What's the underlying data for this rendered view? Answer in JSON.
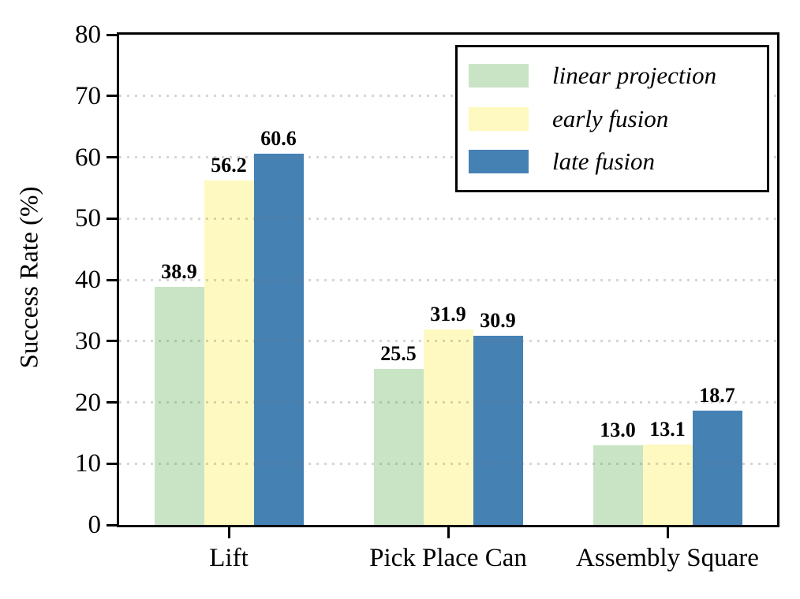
{
  "chart_data": {
    "type": "bar",
    "title": "",
    "xlabel": "",
    "ylabel": "Success Rate (%)",
    "ylim": [
      0,
      80
    ],
    "yticks": [
      0,
      10,
      20,
      30,
      40,
      50,
      60,
      70,
      80
    ],
    "grid": "horizontal dotted",
    "legend_position": "upper right",
    "value_label_decimals": 1,
    "categories": [
      "Lift",
      "Pick Place Can",
      "Assembly Square"
    ],
    "series": [
      {
        "name": "linear projection",
        "color": "#c9e4c5",
        "values": [
          38.9,
          25.5,
          13.0
        ]
      },
      {
        "name": "early fusion",
        "color": "#fdf9c0",
        "values": [
          56.2,
          31.9,
          13.1
        ]
      },
      {
        "name": "late fusion",
        "color": "#4681b4",
        "values": [
          60.6,
          30.9,
          18.7
        ]
      }
    ]
  },
  "colors": {
    "axis": "#000000",
    "grid": "#d9d9d9",
    "background": "#ffffff"
  }
}
